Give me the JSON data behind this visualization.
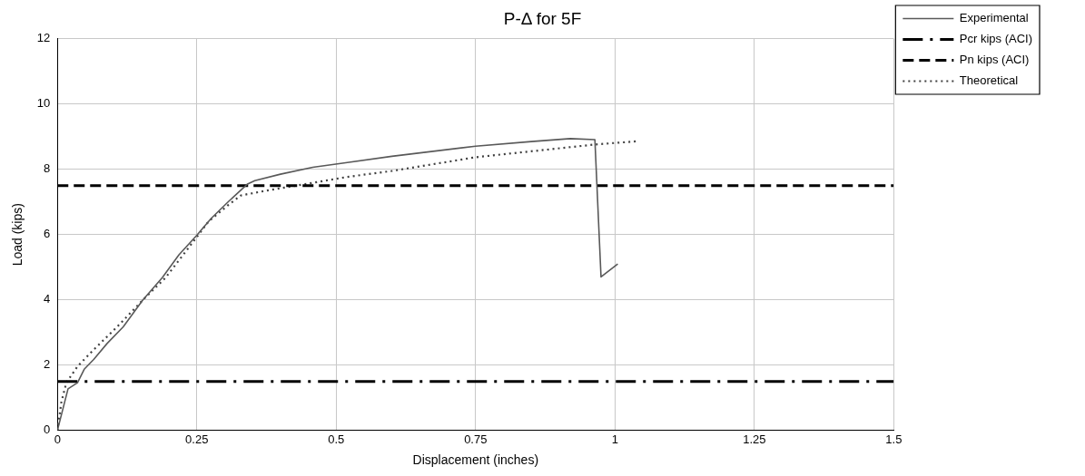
{
  "chart_data": {
    "type": "line",
    "title": "P-Δ for 5F",
    "xlabel": "Displacement (inches)",
    "ylabel": "Load (kips)",
    "xlim": [
      0,
      1.5
    ],
    "xticks": [
      0,
      0.25,
      0.5,
      0.75,
      1,
      1.25,
      1.5
    ],
    "ylim": [
      0,
      12
    ],
    "yticks": [
      0,
      2,
      4,
      6,
      8,
      10,
      12
    ],
    "grid": true,
    "legend": "right",
    "marker": "none",
    "series": [
      {
        "name": "Experimental",
        "color": "#595959",
        "line_style": "solid",
        "x": [
          0,
          0.019,
          0.036,
          0.048,
          0.065,
          0.089,
          0.118,
          0.153,
          0.188,
          0.218,
          0.25,
          0.276,
          0.306,
          0.341,
          0.354,
          0.4,
          0.458,
          0.517,
          0.6,
          0.75,
          0.85,
          0.92,
          0.964,
          0.975,
          1.005
        ],
        "values": [
          0,
          1.27,
          1.46,
          1.87,
          2.17,
          2.66,
          3.17,
          3.99,
          4.68,
          5.38,
          5.98,
          6.5,
          7.0,
          7.55,
          7.65,
          7.85,
          8.06,
          8.2,
          8.4,
          8.71,
          8.85,
          8.94,
          8.91,
          4.7,
          5.1
        ]
      },
      {
        "name": "Pcr kips (ACI)",
        "color": "#000000",
        "line_style": "dashdot",
        "x": [
          0,
          1.5
        ],
        "values": [
          1.5,
          1.5
        ]
      },
      {
        "name": "Pn kips (ACI)",
        "color": "#000000",
        "line_style": "dashed",
        "x": [
          0,
          1.5
        ],
        "values": [
          7.5,
          7.5
        ]
      },
      {
        "name": "Theoretical",
        "color": "#404040",
        "line_style": "dotted",
        "x": [
          0,
          0.007,
          0.016,
          0.036,
          0.065,
          0.107,
          0.153,
          0.194,
          0.235,
          0.271,
          0.306,
          0.329,
          0.376,
          0.446,
          0.517,
          0.6,
          0.75,
          0.964,
          1.04
        ],
        "values": [
          0,
          0.86,
          1.46,
          1.96,
          2.47,
          3.17,
          3.99,
          4.68,
          5.59,
          6.4,
          6.9,
          7.2,
          7.35,
          7.55,
          7.76,
          7.95,
          8.37,
          8.76,
          8.86
        ]
      }
    ]
  }
}
